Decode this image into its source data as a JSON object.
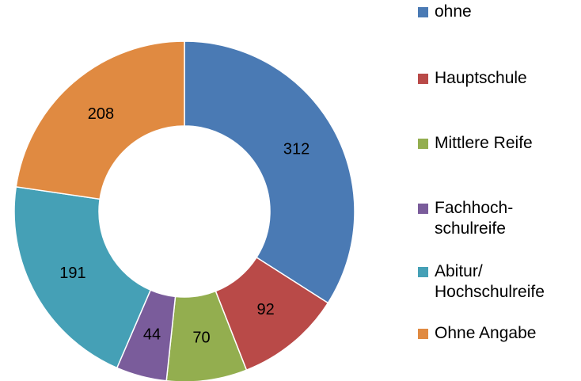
{
  "chart_data": {
    "type": "donut",
    "categories": [
      "ohne",
      "Hauptschule",
      "Mittlere Reife",
      "Fachhoch-\nschulreife",
      "Abitur/\nHochschulreife",
      "Ohne Angabe"
    ],
    "values": [
      312,
      92,
      70,
      44,
      191,
      208
    ],
    "colors": [
      "#4a7ab4",
      "#b94a48",
      "#93ae4f",
      "#7a5c9b",
      "#45a0b6",
      "#e08a41"
    ],
    "legend": "right"
  }
}
